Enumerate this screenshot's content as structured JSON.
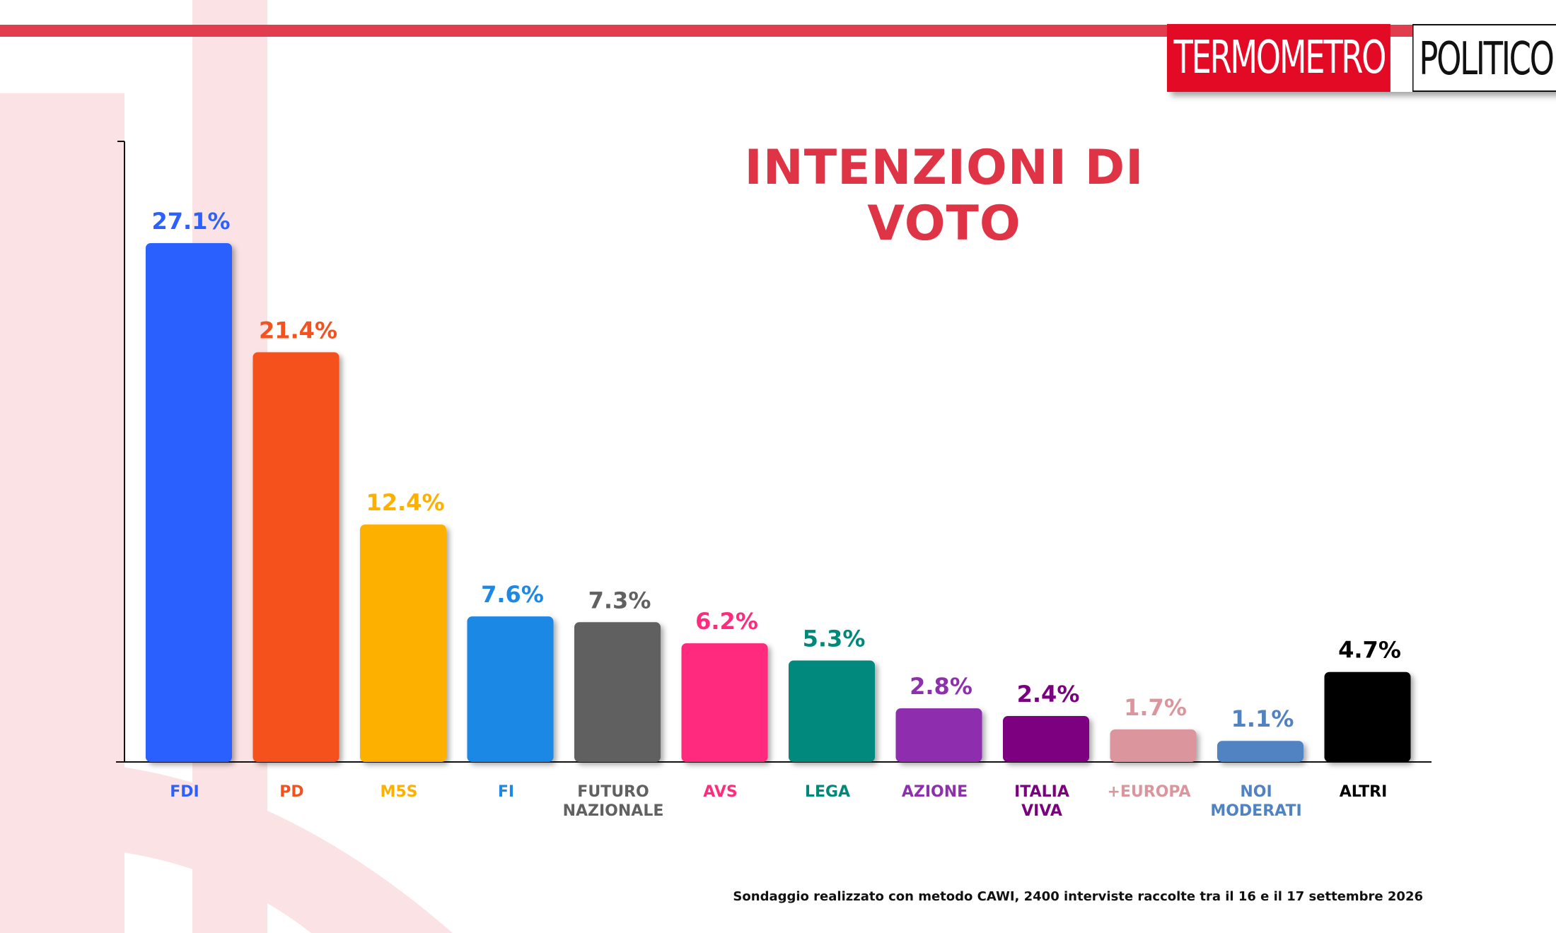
{
  "logo": {
    "part1": "TERMOMETRO",
    "part2": "POLITICO"
  },
  "footnote": "Sondaggio realizzato con metodo CAWI, 2400 interviste raccolte tra il 16 e il 17 settembre 2026",
  "colors": {
    "stripe": "#e23d4e",
    "title": "#df3346",
    "logo_red": "#e30a26"
  },
  "chart_data": {
    "type": "bar",
    "title": "INTENZIONI DI VOTO",
    "xlabel": "",
    "ylabel": "",
    "ylim": [
      0,
      30
    ],
    "grid": false,
    "unit": "%",
    "categories": [
      "FDI",
      "PD",
      "M5S",
      "FI",
      "FUTURO NAZIONALE",
      "AVS",
      "LEGA",
      "AZIONE",
      "ITALIA VIVA",
      "+EUROPA",
      "NOI MODERATI",
      "ALTRI"
    ],
    "category_lines": [
      [
        "FDI"
      ],
      [
        "PD"
      ],
      [
        "M5S"
      ],
      [
        "FI"
      ],
      [
        "FUTURO",
        "NAZIONALE"
      ],
      [
        "AVS"
      ],
      [
        "LEGA"
      ],
      [
        "AZIONE"
      ],
      [
        "ITALIA",
        "VIVA"
      ],
      [
        "+EUROPA"
      ],
      [
        "NOI",
        "MODERATI"
      ],
      [
        "ALTRI"
      ]
    ],
    "values": [
      27.1,
      21.4,
      12.4,
      7.6,
      7.3,
      6.2,
      5.3,
      2.8,
      2.4,
      1.7,
      1.1,
      4.7
    ],
    "value_labels": [
      "27.1%",
      "21.4%",
      "12.4%",
      "7.6%",
      "7.3%",
      "6.2%",
      "5.3%",
      "2.8%",
      "2.4%",
      "1.7%",
      "1.1%",
      "4.7%"
    ],
    "bar_colors": [
      "#2c61fe",
      "#f5511e",
      "#fdb000",
      "#1e88e5",
      "#616161",
      "#ff2c7d",
      "#00897b",
      "#8e2fae",
      "#7b0080",
      "#db969d",
      "#5182c1",
      "#000000"
    ],
    "label_colors": [
      "#2c61fe",
      "#f5511e",
      "#fdb000",
      "#1e88e5",
      "#616161",
      "#ff2c7d",
      "#00897b",
      "#8e2fae",
      "#7b0080",
      "#db969d",
      "#5182c1",
      "#000000"
    ]
  }
}
